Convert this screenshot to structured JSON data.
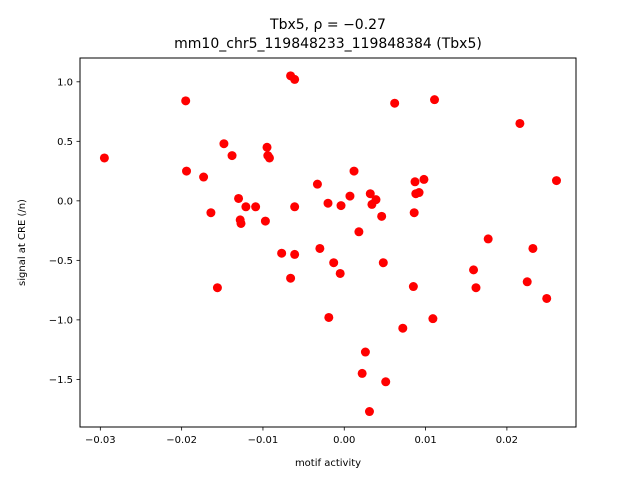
{
  "chart_data": {
    "type": "scatter",
    "title_line1": "Tbx5, ρ = −0.27",
    "title_line2": "mm10_chr5_119848233_119848384 (Tbx5)",
    "xlabel": "motif activity",
    "ylabel": "signal at CRE (/n)",
    "xlim": [
      -0.0325,
      0.0285
    ],
    "ylim": [
      -1.9,
      1.2
    ],
    "xticks": [
      -0.03,
      -0.02,
      -0.01,
      0.0,
      0.01,
      0.02
    ],
    "xtick_labels": [
      "−0.03",
      "−0.02",
      "−0.01",
      "0.00",
      "0.01",
      "0.02"
    ],
    "yticks": [
      -1.5,
      -1.0,
      -0.5,
      0.0,
      0.5,
      1.0
    ],
    "ytick_labels": [
      "−1.5",
      "−1.0",
      "−0.5",
      "0.0",
      "0.5",
      "1.0"
    ],
    "grid": false,
    "marker_color": "#ff0000",
    "points": [
      {
        "x": -0.0295,
        "y": 0.36
      },
      {
        "x": -0.0195,
        "y": 0.84
      },
      {
        "x": -0.0194,
        "y": 0.25
      },
      {
        "x": -0.0173,
        "y": 0.2
      },
      {
        "x": -0.0164,
        "y": -0.1
      },
      {
        "x": -0.0156,
        "y": -0.73
      },
      {
        "x": -0.0148,
        "y": 0.48
      },
      {
        "x": -0.0138,
        "y": 0.38
      },
      {
        "x": -0.013,
        "y": 0.02
      },
      {
        "x": -0.0128,
        "y": -0.16
      },
      {
        "x": -0.0127,
        "y": -0.19
      },
      {
        "x": -0.0121,
        "y": -0.05
      },
      {
        "x": -0.0109,
        "y": -0.05
      },
      {
        "x": -0.0097,
        "y": -0.17
      },
      {
        "x": -0.0095,
        "y": 0.45
      },
      {
        "x": -0.0094,
        "y": 0.38
      },
      {
        "x": -0.0092,
        "y": 0.36
      },
      {
        "x": -0.0077,
        "y": -0.44
      },
      {
        "x": -0.0066,
        "y": 1.05
      },
      {
        "x": -0.0066,
        "y": -0.65
      },
      {
        "x": -0.0061,
        "y": 1.02
      },
      {
        "x": -0.0061,
        "y": -0.05
      },
      {
        "x": -0.0061,
        "y": -0.45
      },
      {
        "x": -0.0033,
        "y": 0.14
      },
      {
        "x": -0.003,
        "y": -0.4
      },
      {
        "x": -0.002,
        "y": -0.02
      },
      {
        "x": -0.0019,
        "y": -0.98
      },
      {
        "x": -0.0013,
        "y": -0.52
      },
      {
        "x": -0.0005,
        "y": -0.61
      },
      {
        "x": -0.0004,
        "y": -0.04
      },
      {
        "x": 0.0007,
        "y": 0.04
      },
      {
        "x": 0.0012,
        "y": 0.25
      },
      {
        "x": 0.0018,
        "y": -0.26
      },
      {
        "x": 0.0022,
        "y": -1.45
      },
      {
        "x": 0.0026,
        "y": -1.27
      },
      {
        "x": 0.0031,
        "y": -1.77
      },
      {
        "x": 0.0032,
        "y": 0.06
      },
      {
        "x": 0.0034,
        "y": -0.03
      },
      {
        "x": 0.0039,
        "y": 0.01
      },
      {
        "x": 0.0046,
        "y": -0.13
      },
      {
        "x": 0.0048,
        "y": -0.52
      },
      {
        "x": 0.0051,
        "y": -1.52
      },
      {
        "x": 0.0062,
        "y": 0.82
      },
      {
        "x": 0.0072,
        "y": -1.07
      },
      {
        "x": 0.0085,
        "y": -0.72
      },
      {
        "x": 0.0086,
        "y": -0.1
      },
      {
        "x": 0.0087,
        "y": 0.16
      },
      {
        "x": 0.0088,
        "y": 0.06
      },
      {
        "x": 0.0092,
        "y": 0.07
      },
      {
        "x": 0.0098,
        "y": 0.18
      },
      {
        "x": 0.0109,
        "y": -0.99
      },
      {
        "x": 0.0111,
        "y": 0.85
      },
      {
        "x": 0.0159,
        "y": -0.58
      },
      {
        "x": 0.0162,
        "y": -0.73
      },
      {
        "x": 0.0177,
        "y": -0.32
      },
      {
        "x": 0.0216,
        "y": 0.65
      },
      {
        "x": 0.0225,
        "y": -0.68
      },
      {
        "x": 0.0232,
        "y": -0.4
      },
      {
        "x": 0.0249,
        "y": -0.82
      },
      {
        "x": 0.0261,
        "y": 0.17
      }
    ]
  }
}
